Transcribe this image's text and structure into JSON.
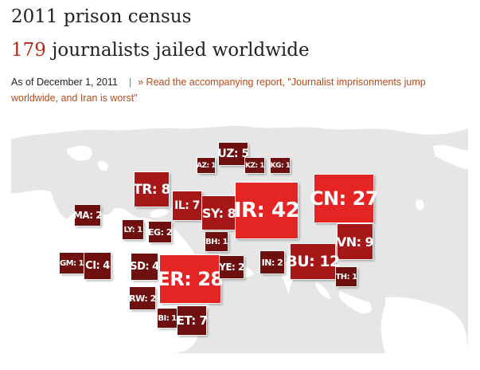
{
  "header": {
    "title": "2011 prison census",
    "subtitle_count": "179",
    "subtitle_rest": " journalists jailed worldwide",
    "date": "As of December 1, 2011",
    "separator": "|",
    "report_link": "» Read the accompanying report, \"Journalist imprisonments jump worldwide, and Iran is worst\""
  },
  "colors": {
    "dark": "#6e1010",
    "mid": "#a61818",
    "bright": "#e52424",
    "link": "#b84a1a"
  },
  "countries": [
    {
      "id": "uz",
      "label": "UZ: 5"
    },
    {
      "id": "az",
      "label": "AZ: 1"
    },
    {
      "id": "kz",
      "label": "KZ: 1"
    },
    {
      "id": "kg",
      "label": "KG: 1"
    },
    {
      "id": "tr",
      "label": "TR: 8"
    },
    {
      "id": "il",
      "label": "IL: 7"
    },
    {
      "id": "sy",
      "label": "SY: 8"
    },
    {
      "id": "ir",
      "label": "IR: 42"
    },
    {
      "id": "cn",
      "label": "CN: 27"
    },
    {
      "id": "ma",
      "label": "MA: 2"
    },
    {
      "id": "ly",
      "label": "LY: 1"
    },
    {
      "id": "eg",
      "label": "EG: 2"
    },
    {
      "id": "bh",
      "label": "BH: 1"
    },
    {
      "id": "vn",
      "label": "VN: 9"
    },
    {
      "id": "gm",
      "label": "GM: 1"
    },
    {
      "id": "ci",
      "label": "CI: 4"
    },
    {
      "id": "sd",
      "label": "SD: 4"
    },
    {
      "id": "er",
      "label": "ER: 28"
    },
    {
      "id": "ye",
      "label": "YE: 2"
    },
    {
      "id": "in",
      "label": "IN: 2"
    },
    {
      "id": "bu",
      "label": "BU: 12"
    },
    {
      "id": "th",
      "label": "TH: 1"
    },
    {
      "id": "rw",
      "label": "RW: 2"
    },
    {
      "id": "bi",
      "label": "BI: 1"
    },
    {
      "id": "et",
      "label": "ET: 7"
    }
  ]
}
